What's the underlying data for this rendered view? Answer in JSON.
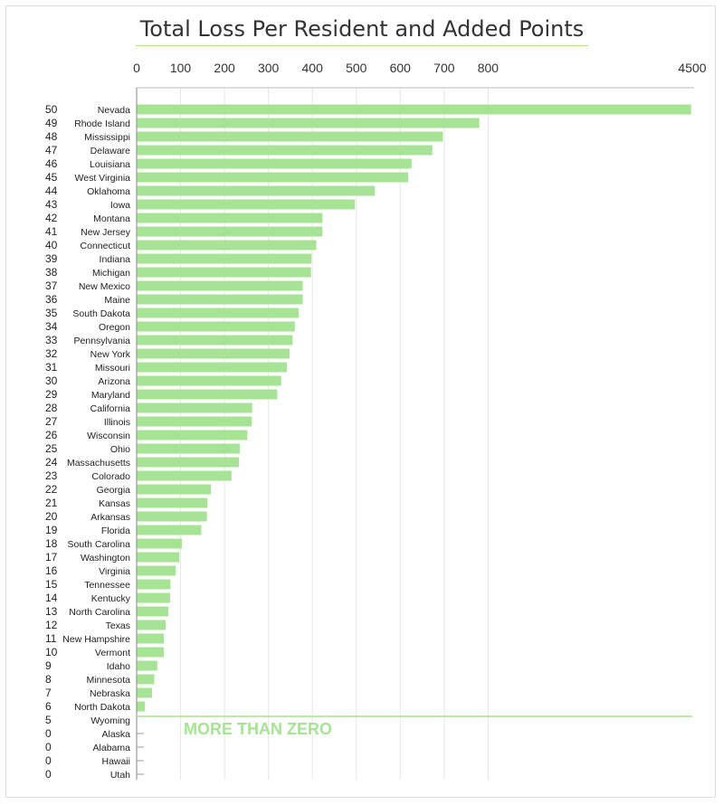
{
  "chart_data": {
    "type": "bar",
    "orientation": "horizontal",
    "title": "Total Loss Per Resident and Added Points",
    "x_ticks": [
      "0",
      "100",
      "200",
      "300",
      "400",
      "500",
      "600",
      "700",
      "800",
      "4500"
    ],
    "x_axis_break": {
      "from": 800,
      "to": 4500
    },
    "bar_color": "#a6e394",
    "annotation": "MORE THAN ZERO",
    "rows": [
      {
        "rank": "50",
        "state": "Nevada",
        "value": 4480
      },
      {
        "rank": "49",
        "state": "Rhode Island",
        "value": 780
      },
      {
        "rank": "48",
        "state": "Mississippi",
        "value": 697
      },
      {
        "rank": "47",
        "state": "Delaware",
        "value": 673
      },
      {
        "rank": "46",
        "state": "Louisiana",
        "value": 626
      },
      {
        "rank": "45",
        "state": "West Virginia",
        "value": 618
      },
      {
        "rank": "44",
        "state": "Oklahoma",
        "value": 542
      },
      {
        "rank": "43",
        "state": "Iowa",
        "value": 497
      },
      {
        "rank": "42",
        "state": "Montana",
        "value": 423
      },
      {
        "rank": "41",
        "state": "New Jersey",
        "value": 423
      },
      {
        "rank": "40",
        "state": "Connecticut",
        "value": 409
      },
      {
        "rank": "39",
        "state": "Indiana",
        "value": 398
      },
      {
        "rank": "38",
        "state": "Michigan",
        "value": 397
      },
      {
        "rank": "37",
        "state": "New Mexico",
        "value": 378
      },
      {
        "rank": "36",
        "state": "Maine",
        "value": 378
      },
      {
        "rank": "35",
        "state": "South Dakota",
        "value": 369
      },
      {
        "rank": "34",
        "state": "Oregon",
        "value": 360
      },
      {
        "rank": "33",
        "state": "Pennsylvania",
        "value": 355
      },
      {
        "rank": "32",
        "state": "New York",
        "value": 348
      },
      {
        "rank": "31",
        "state": "Missouri",
        "value": 342
      },
      {
        "rank": "30",
        "state": "Arizona",
        "value": 329
      },
      {
        "rank": "29",
        "state": "Maryland",
        "value": 320
      },
      {
        "rank": "28",
        "state": "California",
        "value": 263
      },
      {
        "rank": "27",
        "state": "Illinois",
        "value": 262
      },
      {
        "rank": "26",
        "state": "Wisconsin",
        "value": 252
      },
      {
        "rank": "25",
        "state": "Ohio",
        "value": 235
      },
      {
        "rank": "24",
        "state": "Massachusetts",
        "value": 233
      },
      {
        "rank": "23",
        "state": "Colorado",
        "value": 216
      },
      {
        "rank": "22",
        "state": "Georgia",
        "value": 169
      },
      {
        "rank": "21",
        "state": "Kansas",
        "value": 161
      },
      {
        "rank": "20",
        "state": "Arkansas",
        "value": 160
      },
      {
        "rank": "19",
        "state": "Florida",
        "value": 147
      },
      {
        "rank": "18",
        "state": "South Carolina",
        "value": 103
      },
      {
        "rank": "17",
        "state": "Washington",
        "value": 97
      },
      {
        "rank": "16",
        "state": "Virginia",
        "value": 89
      },
      {
        "rank": "15",
        "state": "Tennessee",
        "value": 77
      },
      {
        "rank": "14",
        "state": "Kentucky",
        "value": 76
      },
      {
        "rank": "13",
        "state": "North Carolina",
        "value": 72
      },
      {
        "rank": "12",
        "state": "Texas",
        "value": 66
      },
      {
        "rank": "11",
        "state": "New Hampshire",
        "value": 62
      },
      {
        "rank": "10",
        "state": "Vermont",
        "value": 62
      },
      {
        "rank": "9",
        "state": "Idaho",
        "value": 47
      },
      {
        "rank": "8",
        "state": "Minnesota",
        "value": 40
      },
      {
        "rank": "7",
        "state": "Nebraska",
        "value": 35
      },
      {
        "rank": "6",
        "state": "North Dakota",
        "value": 19
      },
      {
        "rank": "5",
        "state": "Wyoming",
        "value": 0
      },
      {
        "rank": "0",
        "state": "Alaska",
        "value": 0
      },
      {
        "rank": "0",
        "state": "Alabama",
        "value": 0
      },
      {
        "rank": "0",
        "state": "Hawaii",
        "value": 0
      },
      {
        "rank": "0",
        "state": "Utah",
        "value": 0
      }
    ]
  }
}
